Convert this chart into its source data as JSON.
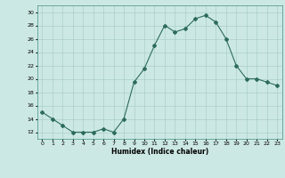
{
  "x": [
    0,
    1,
    2,
    3,
    4,
    5,
    6,
    7,
    8,
    9,
    10,
    11,
    12,
    13,
    14,
    15,
    16,
    17,
    18,
    19,
    20,
    21,
    22,
    23
  ],
  "y": [
    15,
    14,
    13,
    12,
    12,
    12,
    12.5,
    12,
    14,
    19.5,
    21.5,
    25,
    28,
    27,
    27.5,
    29,
    29.5,
    28.5,
    26,
    22,
    20,
    20,
    19.5,
    19
  ],
  "line_color": "#2d6b5e",
  "marker": "D",
  "marker_size": 2.0,
  "bg_color": "#cce8e4",
  "grid_color": "#aacfcb",
  "xlabel": "Humidex (Indice chaleur)",
  "ylabel": "",
  "xlim": [
    -0.5,
    23.5
  ],
  "ylim": [
    11,
    31
  ],
  "yticks": [
    12,
    14,
    16,
    18,
    20,
    22,
    24,
    26,
    28,
    30
  ],
  "xticks": [
    0,
    1,
    2,
    3,
    4,
    5,
    6,
    7,
    8,
    9,
    10,
    11,
    12,
    13,
    14,
    15,
    16,
    17,
    18,
    19,
    20,
    21,
    22,
    23
  ],
  "xtick_labels": [
    "0",
    "1",
    "2",
    "3",
    "4",
    "5",
    "6",
    "7",
    "8",
    "9",
    "10",
    "11",
    "12",
    "13",
    "14",
    "15",
    "16",
    "17",
    "18",
    "19",
    "20",
    "21",
    "22",
    "23"
  ]
}
